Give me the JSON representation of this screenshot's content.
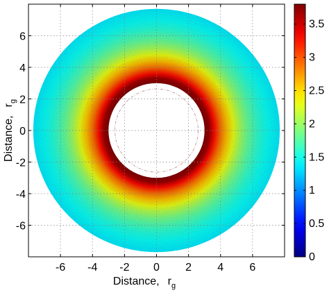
{
  "chart_data": {
    "type": "heatmap",
    "subtype": "radial-annulus",
    "title": "",
    "xlabel": "Distance,",
    "xlabel_subscript_symbol": "r",
    "xlabel_subscript": "g",
    "ylabel": "Distance,",
    "ylabel_subscript_symbol": "r",
    "ylabel_subscript": "g",
    "xlim": [
      -8,
      8
    ],
    "ylim": [
      -8,
      8
    ],
    "xticks": [
      -6,
      -4,
      -2,
      0,
      2,
      4,
      6
    ],
    "xtick_labels": [
      "-6",
      "-4",
      "-2",
      "0",
      "2",
      "4",
      "6"
    ],
    "yticks": [
      -6,
      -4,
      -2,
      0,
      2,
      4,
      6
    ],
    "ytick_labels": [
      "-6",
      "-4",
      "-2",
      "0",
      "2",
      "4",
      "6"
    ],
    "grid": true,
    "inner_edge_radius": 3.0,
    "outer_edge_radius": 7.7,
    "dashed_circle_radius": 2.6,
    "radial_profile": {
      "r": [
        3.0,
        3.3,
        3.6,
        4.0,
        4.4,
        4.8,
        5.2,
        5.6,
        6.0,
        6.5,
        7.0,
        7.7
      ],
      "value": [
        3.8,
        3.7,
        3.3,
        2.9,
        2.6,
        2.3,
        2.05,
        1.85,
        1.7,
        1.55,
        1.45,
        1.35
      ]
    },
    "colorbar": {
      "colormap": "jet",
      "range": [
        0,
        3.8
      ],
      "ticks": [
        0,
        0.5,
        1,
        1.5,
        2,
        2.5,
        3,
        3.5
      ],
      "tick_labels": [
        "0",
        "0.5",
        "1",
        "1.5",
        "2",
        "2.5",
        "3",
        "3.5"
      ]
    }
  }
}
